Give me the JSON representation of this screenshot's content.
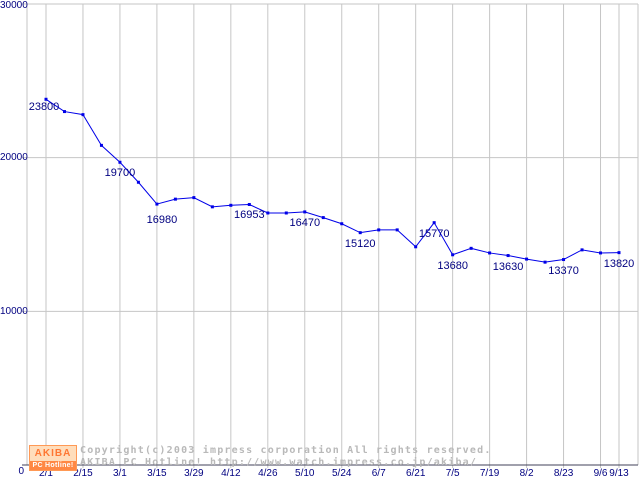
{
  "colors": {
    "line": "#0000e8",
    "marker": "#0000e8",
    "data_label_text": "#000080",
    "axis_tick_text": "#000080",
    "grid": "#c6c6c6",
    "axis_line": "#40405a",
    "watermark_text": "#b9b9b9",
    "logo_orange": "#ff8844",
    "logo_background": "#ffddbb"
  },
  "watermark": {
    "line1": "Copyright(c)2003 impress corporation All rights reserved.",
    "line2": "AKIBA PC Hotline!  http://www.watch.impress.co.jp/akiba/",
    "logo_top_text": "AKIBA",
    "logo_bottom_text": "PC Hotline!"
  },
  "chart_data": {
    "type": "line",
    "title": "",
    "xlabel": "",
    "ylabel": "",
    "ylim": [
      0,
      30000
    ],
    "grid": true,
    "legend": false,
    "yticks": [
      {
        "value": 30000,
        "label": "30000"
      },
      {
        "value": 20000,
        "label": "20000"
      },
      {
        "value": 10000,
        "label": "10000"
      },
      {
        "value": 0,
        "label": "0"
      }
    ],
    "x_tick_labels": [
      {
        "label": "2/1",
        "point_index": 0
      },
      {
        "label": "2/15",
        "point_index": 2
      },
      {
        "label": "3/1",
        "point_index": 4
      },
      {
        "label": "3/15",
        "point_index": 6
      },
      {
        "label": "3/29",
        "point_index": 8
      },
      {
        "label": "4/12",
        "point_index": 10
      },
      {
        "label": "4/26",
        "point_index": 12
      },
      {
        "label": "5/10",
        "point_index": 14
      },
      {
        "label": "5/24",
        "point_index": 16
      },
      {
        "label": "6/7",
        "point_index": 18
      },
      {
        "label": "6/21",
        "point_index": 20
      },
      {
        "label": "7/5",
        "point_index": 22
      },
      {
        "label": "7/19",
        "point_index": 24
      },
      {
        "label": "8/2",
        "point_index": 26
      },
      {
        "label": "8/23",
        "point_index": 28
      },
      {
        "label": "9/6",
        "point_index": 30
      },
      {
        "label": "9/13",
        "point_index": 31
      }
    ],
    "points": [
      {
        "value": 23800,
        "label": "23800"
      },
      {
        "value": 23000
      },
      {
        "value": 22800
      },
      {
        "value": 20800
      },
      {
        "value": 19700,
        "label": "19700"
      },
      {
        "value": 18400
      },
      {
        "value": 16980,
        "label": "16980"
      },
      {
        "value": 17300
      },
      {
        "value": 17400
      },
      {
        "value": 16800
      },
      {
        "value": 16900
      },
      {
        "value": 16953,
        "label": "16953"
      },
      {
        "value": 16400
      },
      {
        "value": 16400
      },
      {
        "value": 16470,
        "label": "16470"
      },
      {
        "value": 16100
      },
      {
        "value": 15700
      },
      {
        "value": 15120,
        "label": "15120"
      },
      {
        "value": 15300
      },
      {
        "value": 15300
      },
      {
        "value": 14200
      },
      {
        "value": 15770,
        "label": "15770"
      },
      {
        "value": 13680,
        "label": "13680"
      },
      {
        "value": 14100
      },
      {
        "value": 13800
      },
      {
        "value": 13630,
        "label": "13630"
      },
      {
        "value": 13400
      },
      {
        "value": 13200
      },
      {
        "value": 13370,
        "label": "13370"
      },
      {
        "value": 14000
      },
      {
        "value": 13800
      },
      {
        "value": 13820,
        "label": "13820"
      }
    ]
  }
}
